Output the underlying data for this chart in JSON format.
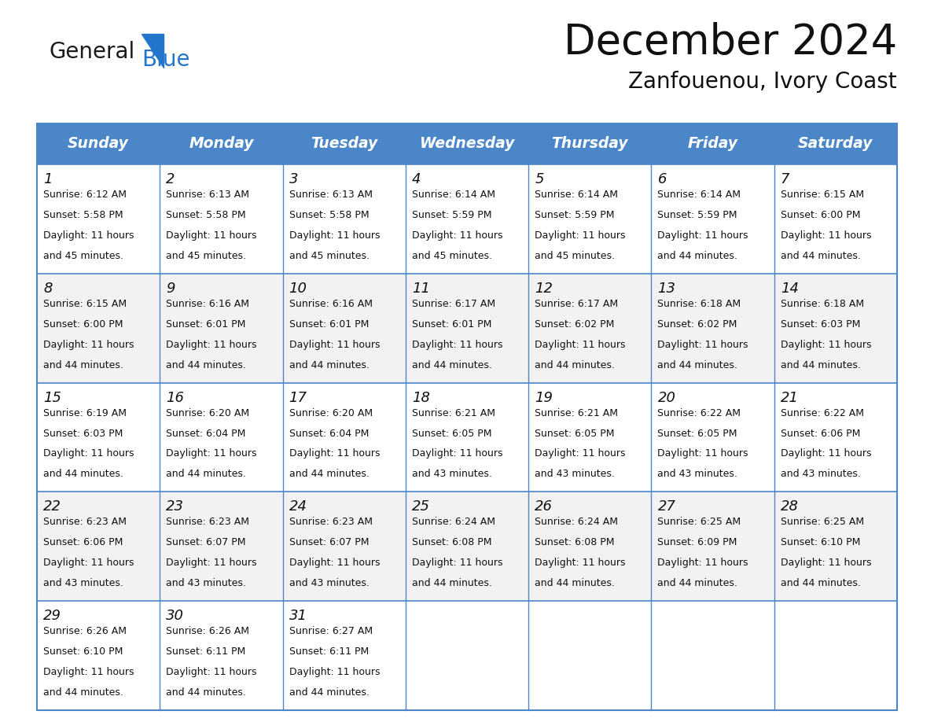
{
  "title": "December 2024",
  "subtitle": "Zanfouenou, Ivory Coast",
  "header_bg_color": "#4A86C8",
  "header_text_color": "#FFFFFF",
  "days_of_week": [
    "Sunday",
    "Monday",
    "Tuesday",
    "Wednesday",
    "Thursday",
    "Friday",
    "Saturday"
  ],
  "weeks": [
    [
      {
        "day": "1",
        "sunrise": "6:12 AM",
        "sunset": "5:58 PM",
        "dl1": "Daylight: 11 hours",
        "dl2": "and 45 minutes."
      },
      {
        "day": "2",
        "sunrise": "6:13 AM",
        "sunset": "5:58 PM",
        "dl1": "Daylight: 11 hours",
        "dl2": "and 45 minutes."
      },
      {
        "day": "3",
        "sunrise": "6:13 AM",
        "sunset": "5:58 PM",
        "dl1": "Daylight: 11 hours",
        "dl2": "and 45 minutes."
      },
      {
        "day": "4",
        "sunrise": "6:14 AM",
        "sunset": "5:59 PM",
        "dl1": "Daylight: 11 hours",
        "dl2": "and 45 minutes."
      },
      {
        "day": "5",
        "sunrise": "6:14 AM",
        "sunset": "5:59 PM",
        "dl1": "Daylight: 11 hours",
        "dl2": "and 45 minutes."
      },
      {
        "day": "6",
        "sunrise": "6:14 AM",
        "sunset": "5:59 PM",
        "dl1": "Daylight: 11 hours",
        "dl2": "and 44 minutes."
      },
      {
        "day": "7",
        "sunrise": "6:15 AM",
        "sunset": "6:00 PM",
        "dl1": "Daylight: 11 hours",
        "dl2": "and 44 minutes."
      }
    ],
    [
      {
        "day": "8",
        "sunrise": "6:15 AM",
        "sunset": "6:00 PM",
        "dl1": "Daylight: 11 hours",
        "dl2": "and 44 minutes."
      },
      {
        "day": "9",
        "sunrise": "6:16 AM",
        "sunset": "6:01 PM",
        "dl1": "Daylight: 11 hours",
        "dl2": "and 44 minutes."
      },
      {
        "day": "10",
        "sunrise": "6:16 AM",
        "sunset": "6:01 PM",
        "dl1": "Daylight: 11 hours",
        "dl2": "and 44 minutes."
      },
      {
        "day": "11",
        "sunrise": "6:17 AM",
        "sunset": "6:01 PM",
        "dl1": "Daylight: 11 hours",
        "dl2": "and 44 minutes."
      },
      {
        "day": "12",
        "sunrise": "6:17 AM",
        "sunset": "6:02 PM",
        "dl1": "Daylight: 11 hours",
        "dl2": "and 44 minutes."
      },
      {
        "day": "13",
        "sunrise": "6:18 AM",
        "sunset": "6:02 PM",
        "dl1": "Daylight: 11 hours",
        "dl2": "and 44 minutes."
      },
      {
        "day": "14",
        "sunrise": "6:18 AM",
        "sunset": "6:03 PM",
        "dl1": "Daylight: 11 hours",
        "dl2": "and 44 minutes."
      }
    ],
    [
      {
        "day": "15",
        "sunrise": "6:19 AM",
        "sunset": "6:03 PM",
        "dl1": "Daylight: 11 hours",
        "dl2": "and 44 minutes."
      },
      {
        "day": "16",
        "sunrise": "6:20 AM",
        "sunset": "6:04 PM",
        "dl1": "Daylight: 11 hours",
        "dl2": "and 44 minutes."
      },
      {
        "day": "17",
        "sunrise": "6:20 AM",
        "sunset": "6:04 PM",
        "dl1": "Daylight: 11 hours",
        "dl2": "and 44 minutes."
      },
      {
        "day": "18",
        "sunrise": "6:21 AM",
        "sunset": "6:05 PM",
        "dl1": "Daylight: 11 hours",
        "dl2": "and 43 minutes."
      },
      {
        "day": "19",
        "sunrise": "6:21 AM",
        "sunset": "6:05 PM",
        "dl1": "Daylight: 11 hours",
        "dl2": "and 43 minutes."
      },
      {
        "day": "20",
        "sunrise": "6:22 AM",
        "sunset": "6:05 PM",
        "dl1": "Daylight: 11 hours",
        "dl2": "and 43 minutes."
      },
      {
        "day": "21",
        "sunrise": "6:22 AM",
        "sunset": "6:06 PM",
        "dl1": "Daylight: 11 hours",
        "dl2": "and 43 minutes."
      }
    ],
    [
      {
        "day": "22",
        "sunrise": "6:23 AM",
        "sunset": "6:06 PM",
        "dl1": "Daylight: 11 hours",
        "dl2": "and 43 minutes."
      },
      {
        "day": "23",
        "sunrise": "6:23 AM",
        "sunset": "6:07 PM",
        "dl1": "Daylight: 11 hours",
        "dl2": "and 43 minutes."
      },
      {
        "day": "24",
        "sunrise": "6:23 AM",
        "sunset": "6:07 PM",
        "dl1": "Daylight: 11 hours",
        "dl2": "and 43 minutes."
      },
      {
        "day": "25",
        "sunrise": "6:24 AM",
        "sunset": "6:08 PM",
        "dl1": "Daylight: 11 hours",
        "dl2": "and 44 minutes."
      },
      {
        "day": "26",
        "sunrise": "6:24 AM",
        "sunset": "6:08 PM",
        "dl1": "Daylight: 11 hours",
        "dl2": "and 44 minutes."
      },
      {
        "day": "27",
        "sunrise": "6:25 AM",
        "sunset": "6:09 PM",
        "dl1": "Daylight: 11 hours",
        "dl2": "and 44 minutes."
      },
      {
        "day": "28",
        "sunrise": "6:25 AM",
        "sunset": "6:10 PM",
        "dl1": "Daylight: 11 hours",
        "dl2": "and 44 minutes."
      }
    ],
    [
      {
        "day": "29",
        "sunrise": "6:26 AM",
        "sunset": "6:10 PM",
        "dl1": "Daylight: 11 hours",
        "dl2": "and 44 minutes."
      },
      {
        "day": "30",
        "sunrise": "6:26 AM",
        "sunset": "6:11 PM",
        "dl1": "Daylight: 11 hours",
        "dl2": "and 44 minutes."
      },
      {
        "day": "31",
        "sunrise": "6:27 AM",
        "sunset": "6:11 PM",
        "dl1": "Daylight: 11 hours",
        "dl2": "and 44 minutes."
      },
      null,
      null,
      null,
      null
    ]
  ],
  "bg_color": "#FFFFFF",
  "row_bg_even": "#FFFFFF",
  "row_bg_odd": "#F2F2F2",
  "border_color": "#4A86C8",
  "cell_text_color": "#111111",
  "logo_text_color": "#1A1A1A",
  "logo_blue_color": "#2277CC",
  "title_color": "#111111",
  "ncols": 7,
  "nweeks": 5
}
